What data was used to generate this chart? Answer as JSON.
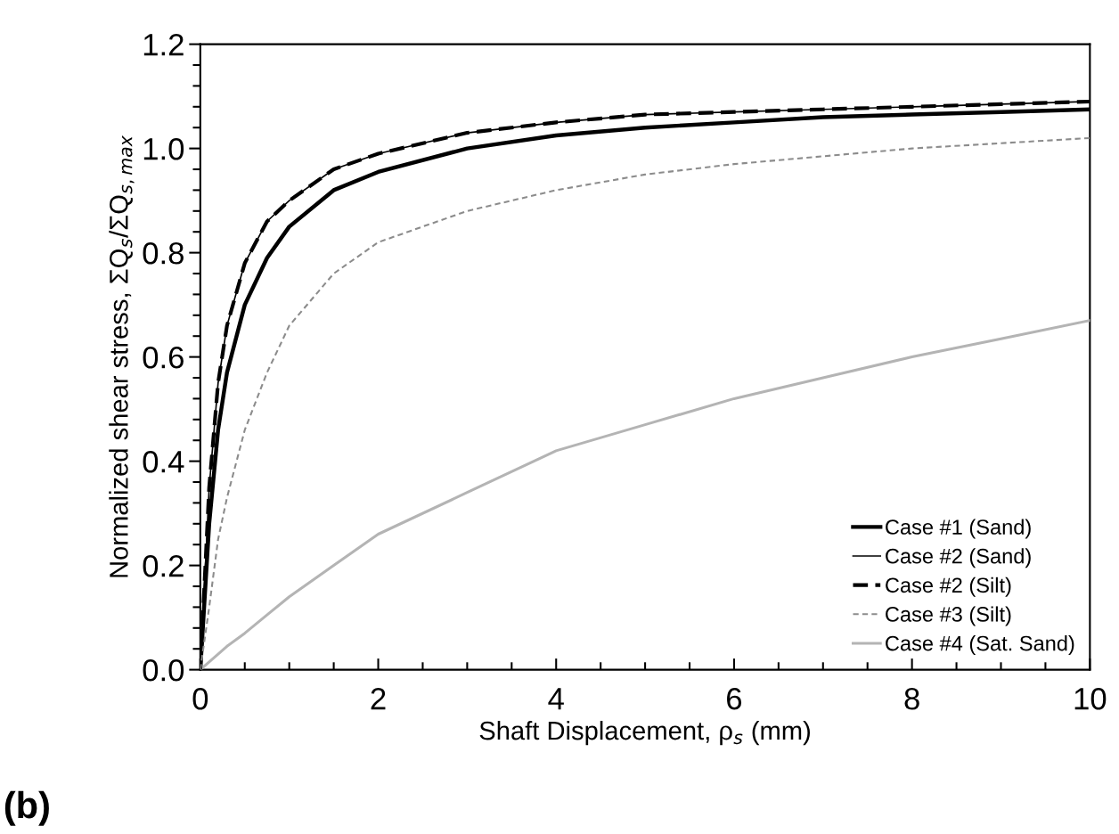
{
  "chart_data": {
    "type": "line",
    "xlabel": "Shaft Displacement, ρ$_{s}$ (mm)",
    "ylabel": "Normalized shear stress, ΣQ$_{s}$/ΣQ$_{s,max}$",
    "annotations": [
      "(b)"
    ],
    "xlim": [
      0,
      10
    ],
    "xticks": [
      0,
      2,
      4,
      6,
      8,
      10
    ],
    "ylim": [
      0,
      1.2
    ],
    "yticks": [
      {
        "value": 0,
        "label": "0.0"
      },
      {
        "value": 0.2,
        "label": "0.2"
      },
      {
        "value": 0.4,
        "label": "0.4"
      },
      {
        "value": 0.6,
        "label": "0.6"
      },
      {
        "value": 0.8,
        "label": "0.8"
      },
      {
        "value": 1.0,
        "label": "1.0"
      },
      {
        "value": 1.2,
        "label": "1.2"
      }
    ],
    "x": [
      0,
      0.1,
      0.2,
      0.3,
      0.5,
      0.75,
      1,
      1.5,
      2,
      3,
      4,
      5,
      6,
      7,
      8,
      9,
      10
    ],
    "grid": false,
    "legend": "bottom right",
    "series": [
      {
        "name": "Case #1 (Sand)",
        "color": "#000000",
        "line_style": "solid",
        "values": [
          0,
          0.28,
          0.46,
          0.57,
          0.7,
          0.79,
          0.85,
          0.92,
          0.955,
          1.0,
          1.025,
          1.04,
          1.05,
          1.06,
          1.065,
          1.07,
          1.075
        ]
      },
      {
        "name": "Case #2 (Sand)",
        "color": "#000000",
        "line_style": "solid",
        "values": [
          0,
          0.35,
          0.55,
          0.66,
          0.78,
          0.86,
          0.9,
          0.96,
          0.99,
          1.03,
          1.05,
          1.065,
          1.07,
          1.075,
          1.08,
          1.085,
          1.09
        ]
      },
      {
        "name": "Case #2 (Silt)",
        "color": "#000000",
        "line_style": "dashed",
        "values": [
          0,
          0.35,
          0.55,
          0.66,
          0.78,
          0.86,
          0.9,
          0.96,
          0.99,
          1.03,
          1.05,
          1.065,
          1.07,
          1.075,
          1.08,
          1.085,
          1.09
        ]
      },
      {
        "name": "Case #3 (Silt)",
        "color": "#8c8c8c",
        "line_style": "dashed",
        "values": [
          0,
          0.12,
          0.25,
          0.33,
          0.46,
          0.57,
          0.66,
          0.76,
          0.82,
          0.88,
          0.92,
          0.95,
          0.97,
          0.985,
          1.0,
          1.01,
          1.02
        ]
      },
      {
        "name": "Case #4 (Sat. Sand)",
        "color": "#b4b4b4",
        "line_style": "solid",
        "values": [
          0,
          0.015,
          0.03,
          0.045,
          0.07,
          0.105,
          0.14,
          0.2,
          0.26,
          0.34,
          0.42,
          0.47,
          0.52,
          0.56,
          0.6,
          0.635,
          0.67
        ]
      }
    ]
  }
}
